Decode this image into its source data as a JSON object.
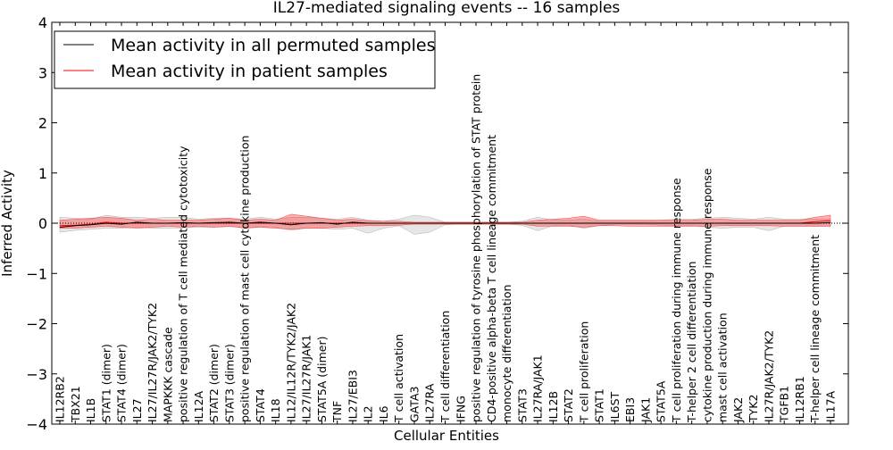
{
  "chart_data": {
    "type": "line",
    "title": "IL27-mediated signaling events -- 16 samples",
    "xlabel": "Cellular Entities",
    "ylabel": "Inferred Activity",
    "ylim": [
      -4,
      4
    ],
    "yticks": [
      -4,
      -3,
      -2,
      -1,
      0,
      1,
      2,
      3,
      4
    ],
    "ytick_labels": [
      "−4",
      "−3",
      "−2",
      "−1",
      "0",
      "1",
      "2",
      "3",
      "4"
    ],
    "legend": {
      "position": "top-left",
      "entries": [
        {
          "label": "Mean activity in all permuted samples",
          "color": "#000000"
        },
        {
          "label": "Mean activity in patient samples",
          "color": "#ff0000"
        }
      ]
    },
    "categories": [
      "IL12RB2",
      "TBX21",
      "IL1B",
      "STAT1 (dimer)",
      "STAT4 (dimer)",
      "IL27",
      "IL27/IL27R/JAK2/TYK2",
      "MAPKKK cascade",
      "positive regulation of T cell mediated cytotoxicity",
      "IL12A",
      "STAT2 (dimer)",
      "STAT3 (dimer)",
      "positive regulation of mast cell cytokine production",
      "STAT4",
      "IL18",
      "IL12/IL12R/TYK2/JAK2",
      "IL27/IL27R/JAK1",
      "STAT5A (dimer)",
      "TNF",
      "IL27/EBI3",
      "IL2",
      "IL6",
      "T cell activation",
      "GATA3",
      "IL27RA",
      "T cell differentiation",
      "IFNG",
      "positive regulation of tyrosine phosphorylation of STAT protein",
      "CD4-positive alpha-beta T cell lineage commitment",
      "monocyte differentiation",
      "STAT3",
      "IL27RA/JAK1",
      "IL12B",
      "STAT2",
      "T cell proliferation",
      "STAT1",
      "IL6ST",
      "EBI3",
      "JAK1",
      "STAT5A",
      "T cell proliferation during immune response",
      "T-helper 2 cell differentiation",
      "cytokine production during immune response",
      "mast cell activation",
      "JAK2",
      "TYK2",
      "IL27R/JAK2/TYK2",
      "TGFB1",
      "IL12RB1",
      "T-helper cell lineage commitment",
      "IL17A"
    ],
    "series": [
      {
        "name": "Mean activity in all permuted samples",
        "color": "#000000",
        "values": [
          -0.08,
          -0.05,
          -0.03,
          0.0,
          -0.02,
          0.02,
          0.0,
          0.0,
          0.01,
          0.0,
          0.01,
          0.02,
          0.0,
          0.02,
          0.0,
          -0.03,
          0.0,
          0.01,
          -0.02,
          0.02,
          0.0,
          0.0,
          0.0,
          0.0,
          0.0,
          0.0,
          0.0,
          0.0,
          0.0,
          0.0,
          0.0,
          0.0,
          0.0,
          0.0,
          0.0,
          0.0,
          0.0,
          0.0,
          0.0,
          0.0,
          0.0,
          0.0,
          0.0,
          0.0,
          0.0,
          0.0,
          0.0,
          0.0,
          0.0,
          0.0,
          0.01
        ],
        "band_lower": [
          -0.18,
          -0.14,
          -0.12,
          -0.1,
          -0.1,
          -0.08,
          -0.1,
          -0.1,
          -0.09,
          -0.08,
          -0.08,
          -0.07,
          -0.08,
          -0.07,
          -0.08,
          -0.14,
          -0.1,
          -0.1,
          -0.12,
          -0.1,
          -0.2,
          -0.1,
          -0.05,
          -0.22,
          -0.18,
          -0.03,
          -0.02,
          -0.02,
          -0.02,
          -0.02,
          -0.04,
          -0.15,
          -0.05,
          -0.04,
          -0.1,
          -0.05,
          -0.02,
          -0.02,
          -0.02,
          -0.04,
          -0.05,
          -0.05,
          -0.08,
          -0.1,
          -0.08,
          -0.08,
          -0.15,
          -0.06,
          -0.06,
          -0.06,
          -0.06
        ],
        "band_upper": [
          0.12,
          0.1,
          0.08,
          0.16,
          0.12,
          0.12,
          0.1,
          0.12,
          0.12,
          0.08,
          0.1,
          0.1,
          0.08,
          0.12,
          0.08,
          0.12,
          0.12,
          0.1,
          0.08,
          0.12,
          0.06,
          0.04,
          0.08,
          0.16,
          0.12,
          0.02,
          0.02,
          0.02,
          0.02,
          0.02,
          0.04,
          0.12,
          0.06,
          0.06,
          0.08,
          0.04,
          0.04,
          0.04,
          0.04,
          0.06,
          0.08,
          0.08,
          0.1,
          0.12,
          0.1,
          0.08,
          0.12,
          0.08,
          0.08,
          0.08,
          0.08
        ]
      },
      {
        "name": "Mean activity in patient samples",
        "color": "#ff0000",
        "values": [
          -0.05,
          -0.04,
          -0.02,
          0.02,
          0.0,
          0.0,
          0.0,
          0.0,
          0.0,
          0.0,
          0.0,
          0.0,
          0.0,
          0.0,
          0.0,
          0.0,
          0.0,
          0.0,
          0.0,
          0.0,
          0.0,
          0.0,
          0.0,
          0.0,
          0.0,
          0.0,
          0.0,
          0.0,
          0.0,
          0.0,
          0.0,
          0.0,
          0.0,
          0.0,
          0.0,
          0.0,
          0.0,
          0.0,
          0.0,
          0.0,
          0.0,
          0.0,
          0.0,
          0.0,
          0.0,
          0.0,
          0.0,
          0.0,
          0.0,
          0.03,
          0.05
        ],
        "band_lower": [
          -0.1,
          -0.1,
          -0.08,
          -0.06,
          -0.08,
          -0.1,
          -0.08,
          -0.06,
          -0.08,
          -0.06,
          -0.08,
          -0.06,
          -0.1,
          -0.08,
          -0.1,
          -0.12,
          -0.1,
          -0.1,
          -0.08,
          -0.06,
          -0.05,
          -0.05,
          -0.04,
          -0.02,
          -0.02,
          -0.02,
          -0.02,
          -0.02,
          -0.02,
          -0.02,
          -0.02,
          -0.06,
          -0.06,
          -0.06,
          -0.08,
          -0.05,
          -0.05,
          -0.06,
          -0.06,
          -0.06,
          -0.06,
          -0.06,
          -0.06,
          -0.05,
          -0.05,
          -0.05,
          -0.05,
          -0.06,
          -0.06,
          -0.06,
          -0.06
        ],
        "band_upper": [
          0.06,
          0.08,
          0.1,
          0.12,
          0.1,
          0.06,
          0.08,
          0.06,
          0.06,
          0.06,
          0.08,
          0.1,
          0.06,
          0.08,
          0.06,
          0.18,
          0.14,
          0.1,
          0.06,
          0.08,
          0.05,
          0.04,
          0.04,
          0.02,
          0.02,
          0.02,
          0.02,
          0.02,
          0.02,
          0.02,
          0.02,
          0.06,
          0.08,
          0.1,
          0.14,
          0.06,
          0.06,
          0.06,
          0.06,
          0.06,
          0.06,
          0.06,
          0.08,
          0.08,
          0.06,
          0.06,
          0.06,
          0.06,
          0.06,
          0.12,
          0.16
        ]
      }
    ],
    "grid": false,
    "zero_line": true
  }
}
